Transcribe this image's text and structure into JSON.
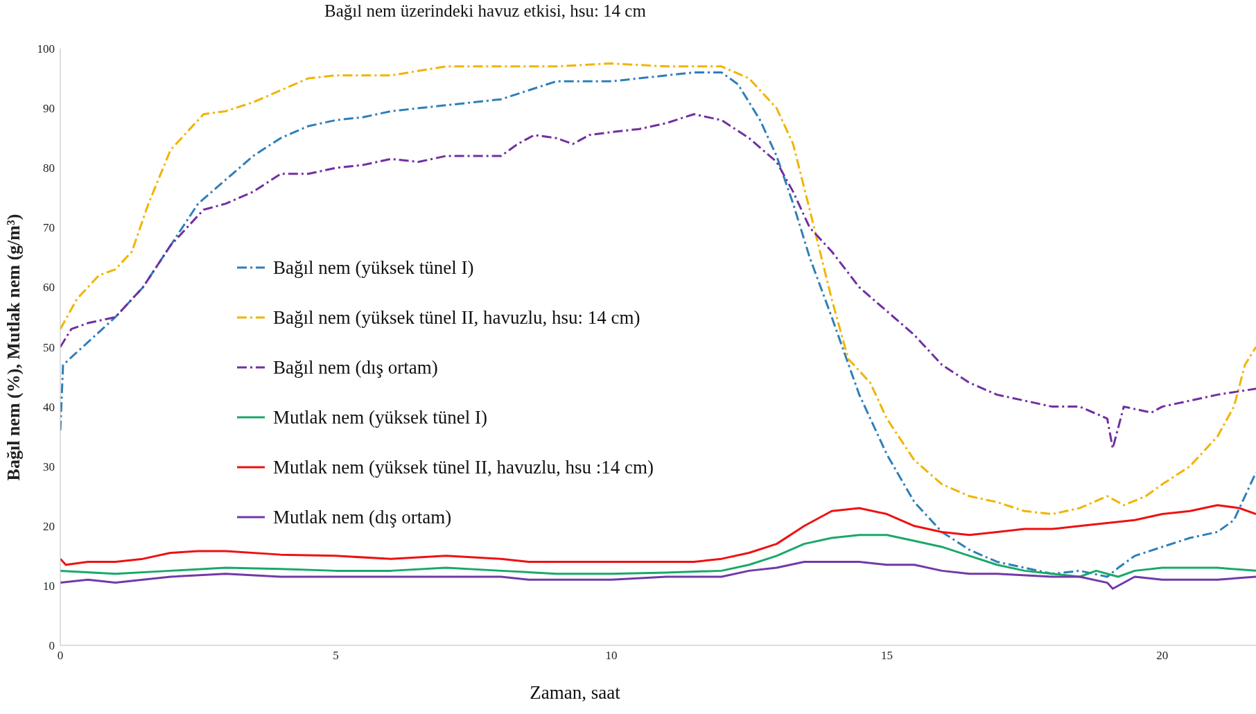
{
  "chart_data": {
    "type": "line",
    "title": "Bağıl nem üzerindeki havuz etkisi, hsu: 14 cm",
    "xlabel": "Zaman, saat",
    "ylabel": "Bağıl nem (%), Mutlak nem (g/m³)",
    "xlim": [
      0,
      21.7
    ],
    "xticks": [
      0,
      5,
      10,
      15,
      20
    ],
    "ylim": [
      0,
      100
    ],
    "yticks": [
      0,
      10,
      20,
      30,
      40,
      50,
      60,
      70,
      80,
      90,
      100
    ],
    "grid": false,
    "legend": "left",
    "marker": "none",
    "series": [
      {
        "name": "Bağıl nem (yüksek tünel I)",
        "color": "#2e7fb8",
        "line_style": "dashed",
        "x": [
          0,
          0.05,
          1,
          1.5,
          2,
          2.5,
          3,
          3.5,
          4,
          4.5,
          5,
          5.5,
          6,
          6.5,
          7,
          7.5,
          8,
          8.5,
          9,
          9.5,
          10,
          10.5,
          11,
          11.5,
          12,
          12.3,
          12.7,
          13,
          13.3,
          13.6,
          14,
          14.5,
          15,
          15.5,
          16,
          16.5,
          17,
          17.5,
          18,
          18.5,
          19,
          19.2,
          19.5,
          20,
          20.5,
          21,
          21.3,
          21.7
        ],
        "values": [
          36,
          47,
          55,
          60,
          67,
          74,
          78,
          82,
          85,
          87,
          88,
          88.5,
          89.5,
          90,
          90.5,
          91,
          91.5,
          93,
          94.5,
          94.5,
          94.5,
          95,
          95.5,
          96,
          96,
          94,
          88,
          82,
          74,
          65,
          55,
          42,
          32,
          24,
          19,
          16,
          14,
          13,
          12,
          12.5,
          11.5,
          13,
          15,
          16.5,
          18,
          19,
          21,
          29
        ]
      },
      {
        "name": "Bağıl nem (yüksek tünel II, havuzlu, hsu: 14 cm)",
        "color": "#f0b400",
        "line_style": "dashed",
        "x": [
          0,
          0.3,
          0.7,
          1,
          1.3,
          1.6,
          2,
          2.3,
          2.6,
          3,
          3.5,
          4,
          4.5,
          5,
          6,
          7,
          8,
          9,
          10,
          11,
          12,
          12.5,
          13,
          13.3,
          13.6,
          14,
          14.3,
          14.7,
          15,
          15.5,
          16,
          16.5,
          17,
          17.5,
          18,
          18.5,
          19,
          19.3,
          19.7,
          20,
          20.5,
          21,
          21.3,
          21.5,
          21.7
        ],
        "values": [
          53,
          58,
          62,
          63,
          66,
          74,
          83,
          86,
          89,
          89.5,
          91,
          93,
          95,
          95.5,
          95.5,
          97,
          97,
          97,
          97.5,
          97,
          97,
          95,
          90,
          84,
          73,
          58,
          48,
          44,
          38,
          31,
          27,
          25,
          24,
          22.5,
          22,
          23,
          25,
          23.5,
          25,
          27,
          30,
          35,
          40,
          47,
          50
        ]
      },
      {
        "name": "Bağıl nem (dış ortam)",
        "color": "#7030a0",
        "line_style": "dashed",
        "x": [
          0,
          0.2,
          0.5,
          1,
          1.5,
          2,
          2.3,
          2.6,
          3,
          3.5,
          4,
          4.5,
          5,
          5.5,
          6,
          6.5,
          7,
          7.5,
          8,
          8.3,
          8.6,
          9,
          9.3,
          9.6,
          10,
          10.5,
          11,
          11.5,
          12,
          12.5,
          13,
          13.3,
          13.6,
          14,
          14.5,
          15,
          15.5,
          16,
          16.5,
          17,
          17.5,
          18,
          18.5,
          19,
          19.1,
          19.3,
          19.8,
          20,
          20.5,
          21,
          21.7
        ],
        "values": [
          50,
          53,
          54,
          55,
          60,
          67,
          70,
          73,
          74,
          76,
          79,
          79,
          80,
          80.5,
          81.5,
          81,
          82,
          82,
          82,
          84,
          85.5,
          85,
          84,
          85.5,
          86,
          86.5,
          87.5,
          89,
          88,
          85,
          81,
          76,
          70,
          66,
          60,
          56,
          52,
          47,
          44,
          42,
          41,
          40,
          40,
          38,
          33,
          40,
          39,
          40,
          41,
          42,
          43
        ]
      },
      {
        "name": "Mutlak nem (yüksek tünel I)",
        "color": "#1aa86a",
        "line_style": "solid",
        "x": [
          0,
          1,
          2,
          3,
          4,
          5,
          6,
          7,
          8,
          9,
          10,
          11,
          12,
          12.5,
          13,
          13.5,
          14,
          14.5,
          15,
          15.5,
          16,
          16.5,
          17,
          17.5,
          18,
          18.5,
          18.8,
          19,
          19.2,
          19.5,
          20,
          21,
          21.7
        ],
        "values": [
          12.5,
          12,
          12.5,
          13,
          12.8,
          12.5,
          12.5,
          13,
          12.5,
          12,
          12,
          12.2,
          12.5,
          13.5,
          15,
          17,
          18,
          18.5,
          18.5,
          17.5,
          16.5,
          15,
          13.5,
          12.5,
          12,
          11.5,
          12.5,
          12,
          11.5,
          12.5,
          13,
          13,
          12.5
        ]
      },
      {
        "name": "Mutlak nem (yüksek tünel II, havuzlu, hsu :14 cm)",
        "color": "#ee1111",
        "line_style": "solid",
        "x": [
          0,
          0.1,
          0.5,
          1,
          1.5,
          2,
          2.5,
          3,
          4,
          5,
          6,
          7,
          8,
          8.5,
          9,
          10,
          11,
          11.5,
          12,
          12.5,
          13,
          13.5,
          14,
          14.5,
          15,
          15.5,
          16,
          16.5,
          17,
          17.5,
          18,
          18.5,
          19,
          19.5,
          20,
          20.5,
          21,
          21.4,
          21.7
        ],
        "values": [
          14.5,
          13.5,
          14,
          14,
          14.5,
          15.5,
          15.8,
          15.8,
          15.2,
          15,
          14.5,
          15,
          14.5,
          14,
          14,
          14,
          14,
          14,
          14.5,
          15.5,
          17,
          20,
          22.5,
          23,
          22,
          20,
          19,
          18.5,
          19,
          19.5,
          19.5,
          20,
          20.5,
          21,
          22,
          22.5,
          23.5,
          23,
          22
        ]
      },
      {
        "name": "Mutlak nem (dış ortam)",
        "color": "#7338a8",
        "line_style": "solid",
        "x": [
          0,
          0.5,
          1,
          1.5,
          2,
          3,
          4,
          5,
          6,
          7,
          8,
          8.5,
          9,
          10,
          11,
          12,
          12.5,
          13,
          13.5,
          14,
          14.5,
          15,
          15.5,
          16,
          16.5,
          17,
          18,
          18.5,
          19,
          19.1,
          19.5,
          20,
          21,
          21.7
        ],
        "values": [
          10.5,
          11,
          10.5,
          11,
          11.5,
          12,
          11.5,
          11.5,
          11.5,
          11.5,
          11.5,
          11,
          11,
          11,
          11.5,
          11.5,
          12.5,
          13,
          14,
          14,
          14,
          13.5,
          13.5,
          12.5,
          12,
          12,
          11.5,
          11.5,
          10.5,
          9.5,
          11.5,
          11,
          11,
          11.5
        ]
      }
    ]
  }
}
